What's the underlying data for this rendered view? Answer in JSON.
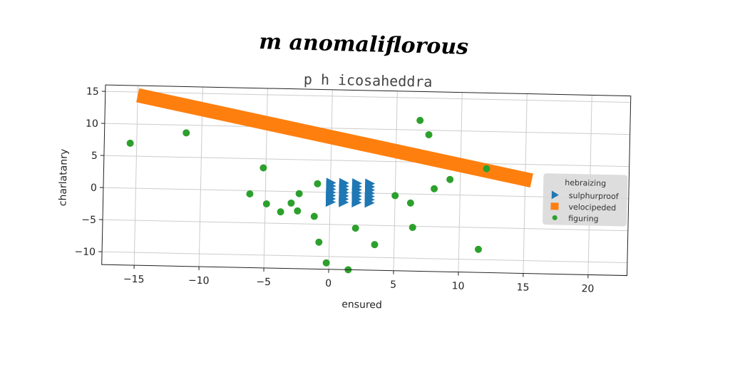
{
  "figure": {
    "suptitle": "m anomaliflorous"
  },
  "chart_data": {
    "type": "scatter",
    "title": "p h icosaheddra",
    "xlabel": "ensured",
    "ylabel": "charlatanry",
    "xlim": [
      -17.5,
      23
    ],
    "ylim": [
      -12,
      16
    ],
    "xticks": [
      -15,
      -10,
      -5,
      0,
      5,
      10,
      15,
      20
    ],
    "yticks": [
      -10,
      -5,
      0,
      5,
      10,
      15
    ],
    "grid": true,
    "legend": {
      "title": "hebraizing",
      "placement": "right",
      "entries": [
        "sulphurproof",
        "velocipeded",
        "figuring"
      ]
    },
    "series": [
      {
        "name": "sulphurproof",
        "kind": "triangle-markers",
        "color": "#1f77b4",
        "x": [
          0,
          0,
          0,
          0,
          0,
          0,
          0,
          1,
          1,
          1,
          1,
          1,
          1,
          1,
          2,
          2,
          2,
          2,
          2,
          2,
          2,
          3,
          3,
          3,
          3,
          3,
          3,
          3
        ],
        "y": [
          -1.5,
          -1,
          -0.5,
          0,
          0.5,
          1,
          1.5,
          -1.5,
          -1,
          -0.5,
          0,
          0.5,
          1,
          1.5,
          -1.5,
          -1,
          -0.5,
          0,
          0.5,
          1,
          1.5,
          -1.5,
          -1,
          -0.5,
          0,
          0.5,
          1,
          1.5
        ]
      },
      {
        "name": "velocipeded",
        "kind": "line-band",
        "color": "#ff7f0e",
        "x": [
          -15,
          15.5
        ],
        "y": [
          14.5,
          2.5
        ]
      },
      {
        "name": "figuring",
        "kind": "dot-markers",
        "color": "#2ca02c",
        "x": [
          -15.5,
          -11.2,
          -6.2,
          -5.2,
          -4.9,
          -3.8,
          -3,
          -2.5,
          -2.4,
          -1.2,
          -1,
          -0.8,
          -0.2,
          1,
          1.5,
          2,
          3.5,
          5,
          6.2,
          6.4,
          6.8,
          7.5,
          8,
          9.2,
          11.5,
          12
        ],
        "y": [
          7,
          8.8,
          -0.5,
          3.6,
          -2,
          -3.2,
          -1.8,
          -3,
          -0.3,
          -3.8,
          1.3,
          -7.8,
          -11,
          0.3,
          -12,
          -5.5,
          -8,
          -0.3,
          -1.4,
          -5.2,
          11.5,
          9.3,
          0.9,
          2.4,
          -8.4,
          4.2
        ]
      }
    ]
  }
}
